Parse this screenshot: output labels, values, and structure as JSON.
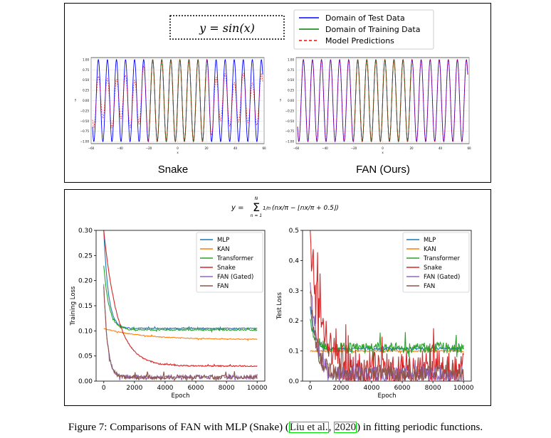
{
  "top_panel": {
    "formula": "y = sin(x)",
    "legend": [
      {
        "label": "Domain of Test Data",
        "color": "#0000ff",
        "dash": false
      },
      {
        "label": "Domain of Training Data",
        "color": "#008000",
        "dash": false
      },
      {
        "label": "Model Predictions",
        "color": "#ff0000",
        "dash": true
      }
    ],
    "left_title": "Snake",
    "right_title": "FAN (Ours)"
  },
  "bottom_panel": {
    "formula_lhs": "y =",
    "formula_sum_top": "N",
    "formula_sum_bottom": "n = 1",
    "formula_body": "(nx/π − ⌊nx/π + 0.5⌋)",
    "formula_coef": "1/n"
  },
  "caption": {
    "prefix": "Figure 7: Comparisons of FAN with MLP (Snake) (",
    "cite_author": "Liu et al.",
    "cite_sep": ", ",
    "cite_year": "2020",
    "suffix": ") in fitting periodic functions."
  },
  "chart_data": [
    {
      "type": "line",
      "name": "snake-sin",
      "title": "Snake",
      "xlabel": "x",
      "ylabel": "y",
      "xlim": [
        -60,
        60
      ],
      "ylim": [
        -1.05,
        1.05
      ],
      "xticks": [
        -60,
        -40,
        -20,
        0,
        20,
        40,
        60
      ],
      "yticks": [
        -1.0,
        -0.75,
        -0.5,
        -0.25,
        0.0,
        0.25,
        0.5,
        0.75,
        1.0
      ],
      "ytick_labels": [
        "−1.00",
        "−0.75",
        "−0.50",
        "−0.25",
        "0.00",
        "0.25",
        "0.50",
        "0.75",
        "1.00"
      ],
      "grid": true,
      "function": "sin(x)",
      "test_domain": [
        -59,
        59
      ],
      "train_domain": [
        -20,
        20
      ],
      "colors": {
        "test": "#0000ff",
        "train": "#008000",
        "pred": "#ff0000"
      },
      "prediction_amplitude_outside": 0.55
    },
    {
      "type": "line",
      "name": "fan-sin",
      "title": "FAN (Ours)",
      "xlabel": "x",
      "ylabel": "y",
      "xlim": [
        -60,
        60
      ],
      "ylim": [
        -1.05,
        1.05
      ],
      "xticks": [
        -60,
        -40,
        -20,
        0,
        20,
        40,
        60
      ],
      "yticks": [
        -1.0,
        -0.75,
        -0.5,
        -0.25,
        0.0,
        0.25,
        0.5,
        0.75,
        1.0
      ],
      "ytick_labels": [
        "−1.00",
        "−0.75",
        "−0.50",
        "−0.25",
        "0.00",
        "0.25",
        "0.50",
        "0.75",
        "1.00"
      ],
      "grid": true,
      "function": "sin(x)",
      "test_domain": [
        -59,
        59
      ],
      "train_domain": [
        -20,
        20
      ],
      "colors": {
        "test": "#0000ff",
        "train": "#008000",
        "pred": "#ff0000"
      },
      "prediction_amplitude_outside": 1.0
    },
    {
      "type": "line",
      "name": "training-loss",
      "xlabel": "Epoch",
      "ylabel": "Training Loss",
      "xlim": [
        -500,
        10500
      ],
      "ylim": [
        0.0,
        0.3
      ],
      "xticks": [
        0,
        2000,
        4000,
        6000,
        8000,
        10000
      ],
      "yticks": [
        0.0,
        0.05,
        0.1,
        0.15,
        0.2,
        0.25,
        0.3
      ],
      "ytick_labels": [
        "0.00",
        "0.05",
        "0.10",
        "0.15",
        "0.20",
        "0.25",
        "0.30"
      ],
      "legend_position": "top-right",
      "series": [
        {
          "name": "MLP",
          "color": "#1f77b4",
          "start": 0.3,
          "plateau": 0.105,
          "decay": 300,
          "noise": 0.001
        },
        {
          "name": "KAN",
          "color": "#ff7f0e",
          "start": 0.105,
          "plateau": 0.083,
          "decay": 2500,
          "noise": 0.0008
        },
        {
          "name": "Transformer",
          "color": "#2ca02c",
          "start": 0.23,
          "plateau": 0.102,
          "decay": 350,
          "noise": 0.0015
        },
        {
          "name": "Snake",
          "color": "#d62728",
          "start": 0.3,
          "plateau": 0.03,
          "decay": 900,
          "noise": 0.0012
        },
        {
          "name": "FAN (Gated)",
          "color": "#9467bd",
          "start": 0.19,
          "plateau": 0.008,
          "decay": 250,
          "noise": 0.004
        },
        {
          "name": "FAN",
          "color": "#8c564b",
          "start": 0.19,
          "plateau": 0.008,
          "decay": 250,
          "noise": 0.004
        }
      ]
    },
    {
      "type": "line",
      "name": "test-loss",
      "xlabel": "Epoch",
      "ylabel": "Test Loss",
      "xlim": [
        -500,
        10500
      ],
      "ylim": [
        0.0,
        0.5
      ],
      "xticks": [
        0,
        2000,
        4000,
        6000,
        8000,
        10000
      ],
      "yticks": [
        0.0,
        0.1,
        0.2,
        0.3,
        0.4,
        0.5
      ],
      "ytick_labels": [
        "0.0",
        "0.1",
        "0.2",
        "0.3",
        "0.4",
        "0.5"
      ],
      "legend_position": "top-right",
      "series": [
        {
          "name": "MLP",
          "color": "#1f77b4",
          "start": 0.25,
          "plateau": 0.108,
          "decay": 250,
          "noise": 0.004
        },
        {
          "name": "KAN",
          "color": "#ff7f0e",
          "start": 0.1,
          "plateau": 0.1,
          "decay": 500,
          "noise": 0.002
        },
        {
          "name": "Transformer",
          "color": "#2ca02c",
          "start": 0.2,
          "plateau": 0.11,
          "decay": 300,
          "noise": 0.018
        },
        {
          "name": "Snake",
          "color": "#d62728",
          "start": 0.5,
          "plateau": 0.04,
          "decay": 700,
          "noise": 0.06
        },
        {
          "name": "FAN (Gated)",
          "color": "#9467bd",
          "start": 0.35,
          "plateau": 0.02,
          "decay": 400,
          "noise": 0.03
        },
        {
          "name": "FAN",
          "color": "#8c564b",
          "start": 0.3,
          "plateau": 0.025,
          "decay": 400,
          "noise": 0.03
        }
      ]
    }
  ]
}
